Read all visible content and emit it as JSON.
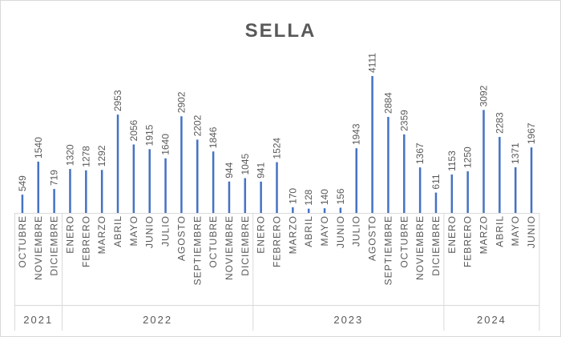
{
  "chart_data": {
    "type": "bar",
    "title": "SELLA",
    "xlabel": "",
    "ylabel": "",
    "ylim": [
      0,
      4111
    ],
    "grid": false,
    "legend": "none",
    "bar_color": "#4472c4",
    "text_color": "#595959",
    "categories": [
      "OCTUBRE",
      "NOVIEMBRE",
      "DICIEMBRE",
      "ENERO",
      "FEBRERO",
      "MARZO",
      "ABRIL",
      "MAYO",
      "JUNIO",
      "JULIO",
      "AGOSTO",
      "SEPTIEMBRE",
      "OCTUBRE",
      "NOVIEMBRE",
      "DICIEMBRE",
      "ENERO",
      "FEBRERO",
      "MARZO",
      "ABRIL",
      "MAYO",
      "JUNIO",
      "JULIO",
      "AGOSTO",
      "SEPTIEMBRE",
      "OCTUBRE",
      "NOVIEMBRE",
      "DICIEMBRE",
      "ENERO",
      "FEBRERO",
      "MARZO",
      "ABRIL",
      "MAYO",
      "JUNIO"
    ],
    "values": [
      549,
      1540,
      719,
      1320,
      1278,
      1292,
      2953,
      2056,
      1915,
      1640,
      2902,
      2202,
      1846,
      944,
      1045,
      941,
      1524,
      170,
      128,
      140,
      156,
      1943,
      4111,
      2884,
      2359,
      1367,
      611,
      1153,
      1250,
      3092,
      2283,
      1371,
      1967
    ],
    "groups": [
      {
        "label": "2021",
        "count": 3
      },
      {
        "label": "2022",
        "count": 12
      },
      {
        "label": "2023",
        "count": 12
      },
      {
        "label": "2024",
        "count": 6
      }
    ]
  }
}
